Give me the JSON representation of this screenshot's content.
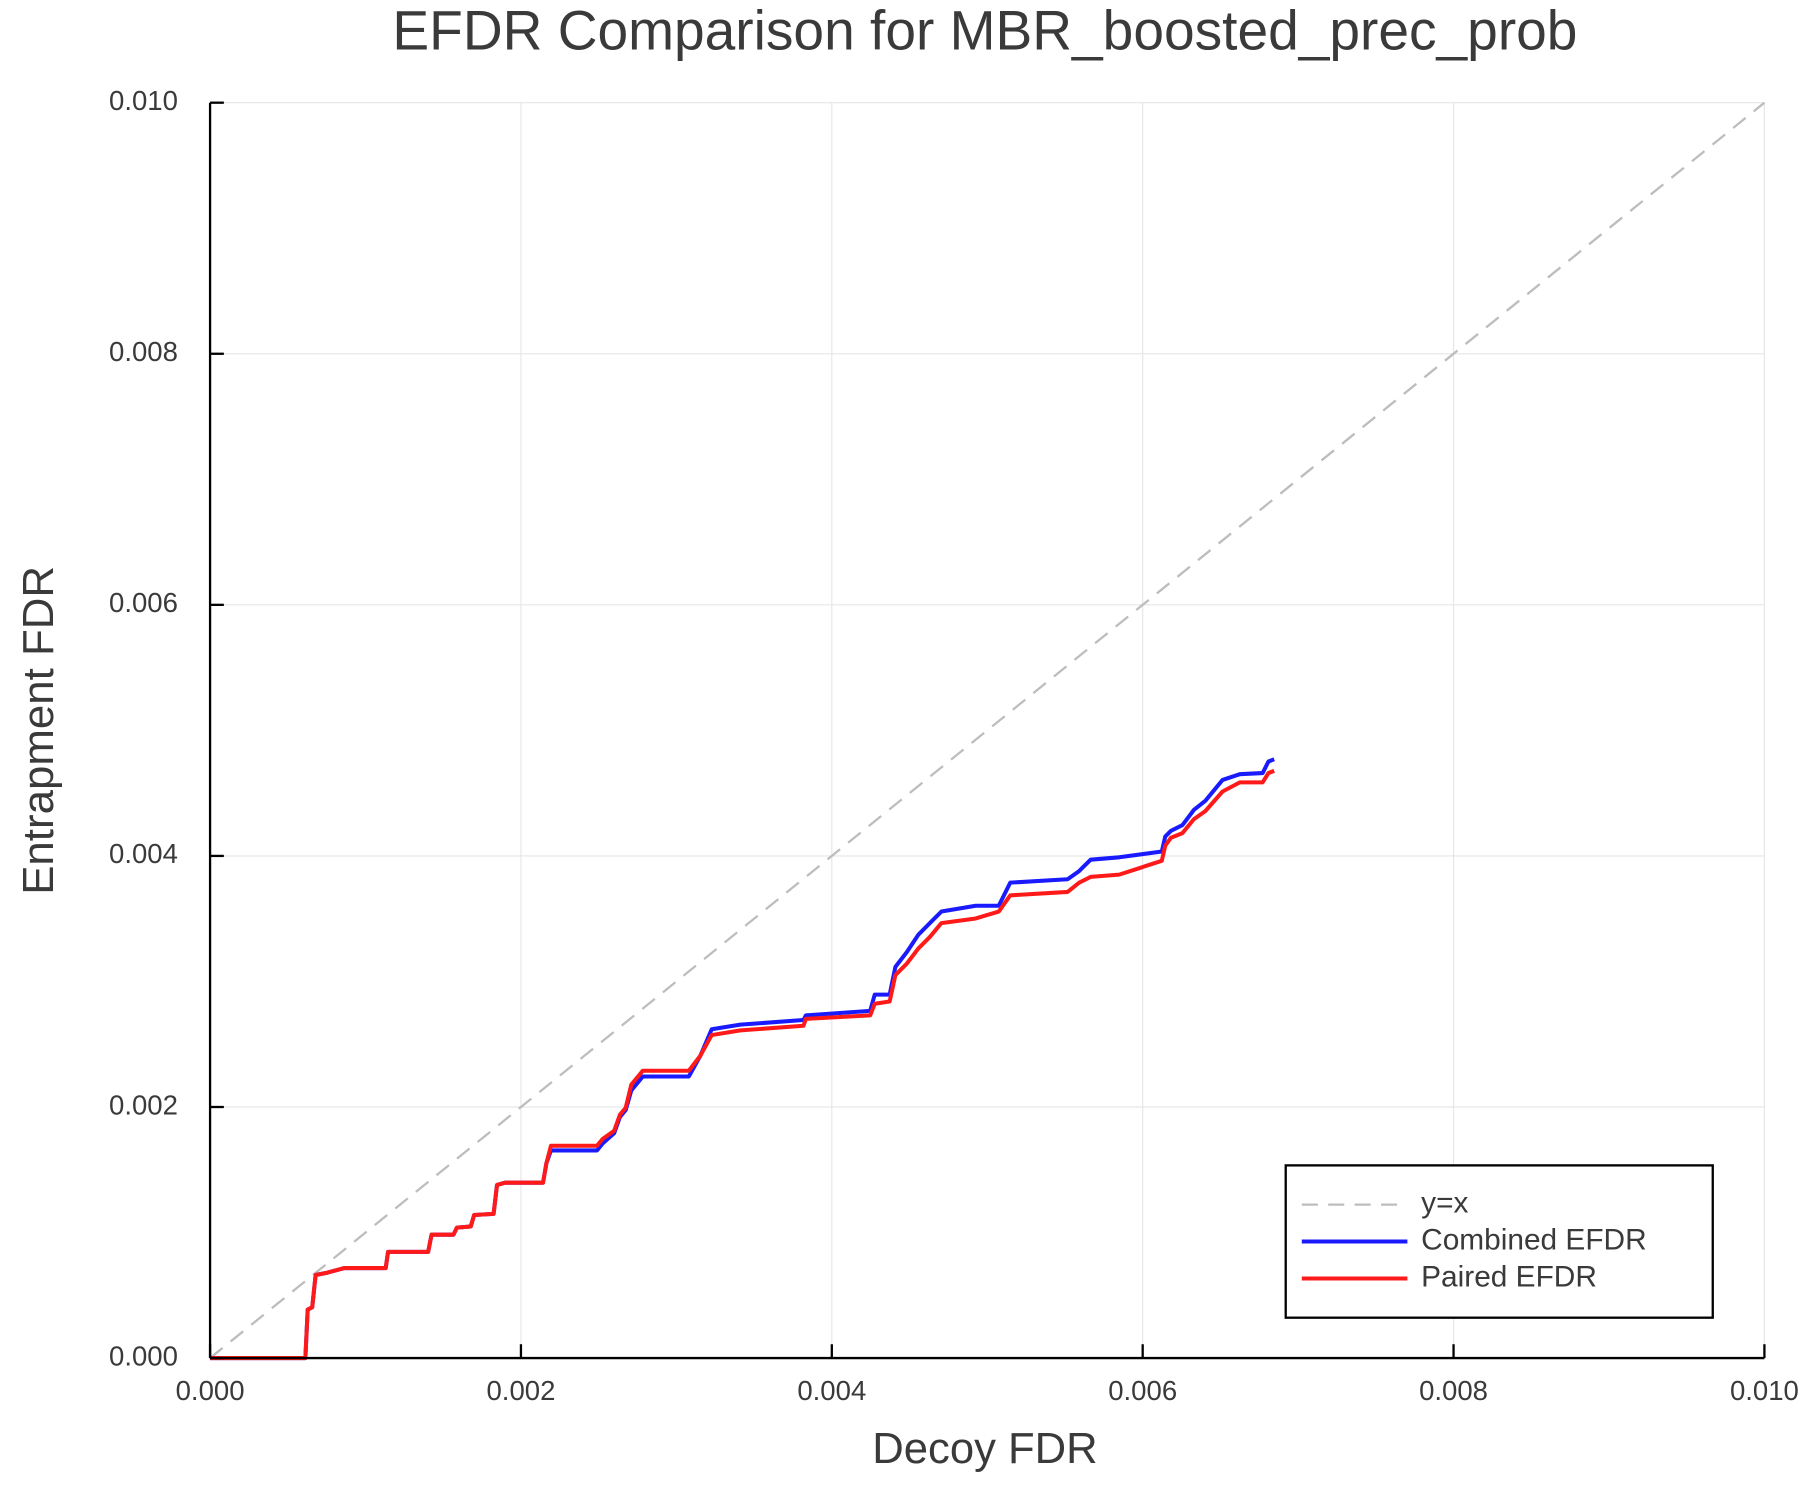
{
  "chart_data": {
    "type": "line",
    "title": "EFDR Comparison for MBR_boosted_prec_prob",
    "x_label": "Decoy FDR",
    "y_label": "Entrapment FDR",
    "xlim": [
      0,
      0.01
    ],
    "ylim": [
      0,
      0.01
    ],
    "xticks": [
      {
        "value": 0,
        "label": "0.000"
      },
      {
        "value": 0.002,
        "label": "0.002"
      },
      {
        "value": 0.004,
        "label": "0.004"
      },
      {
        "value": 0.006,
        "label": "0.006"
      },
      {
        "value": 0.008,
        "label": "0.008"
      },
      {
        "value": 0.01,
        "label": "0.010"
      }
    ],
    "yticks": [
      {
        "value": 0,
        "label": "0.000"
      },
      {
        "value": 0.002,
        "label": "0.002"
      },
      {
        "value": 0.004,
        "label": "0.004"
      },
      {
        "value": 0.006,
        "label": "0.006"
      },
      {
        "value": 0.008,
        "label": "0.008"
      },
      {
        "value": 0.01,
        "label": "0.010"
      }
    ],
    "grid": true,
    "legend": "lower right",
    "series": [
      {
        "name": "y=x",
        "color": "#bdbdbd",
        "dash": true,
        "x": [
          0,
          0.01
        ],
        "values": [
          0,
          0.01
        ]
      },
      {
        "name": "Combined EFDR",
        "color": "#1a1aff",
        "dash": false,
        "x": [
          0,
          0.000613,
          0.000628,
          0.000657,
          0.000679,
          0.000753,
          0.000864,
          0.00113,
          0.001145,
          0.001403,
          0.001425,
          0.001566,
          0.001588,
          0.001677,
          0.001699,
          0.001824,
          0.001846,
          0.001898,
          0.002142,
          0.002164,
          0.002193,
          0.002489,
          0.002526,
          0.0026,
          0.002637,
          0.002674,
          0.00271,
          0.002784,
          0.00308,
          0.003154,
          0.003227,
          0.003412,
          0.003818,
          0.003833,
          0.004247,
          0.004276,
          0.004372,
          0.004409,
          0.004483,
          0.004557,
          0.004631,
          0.004705,
          0.004926,
          0.005074,
          0.005148,
          0.005517,
          0.005591,
          0.005665,
          0.005849,
          0.006123,
          0.006145,
          0.006182,
          0.006256,
          0.006329,
          0.006403,
          0.006514,
          0.006625,
          0.006772,
          0.006809,
          0.006846
        ],
        "values": [
          0,
          0,
          0.000386,
          0.000404,
          0.000662,
          0.00068,
          0.000717,
          0.000717,
          0.000846,
          0.000846,
          0.000983,
          0.000983,
          0.001039,
          0.001048,
          0.00114,
          0.001149,
          0.001379,
          0.001397,
          0.001397,
          0.001553,
          0.001654,
          0.001654,
          0.00171,
          0.001792,
          0.001921,
          0.001976,
          0.002132,
          0.002243,
          0.002243,
          0.002408,
          0.002619,
          0.002656,
          0.002693,
          0.00273,
          0.002766,
          0.002895,
          0.002895,
          0.003116,
          0.003235,
          0.003373,
          0.003465,
          0.003557,
          0.003603,
          0.003603,
          0.003787,
          0.003814,
          0.003879,
          0.00397,
          0.003989,
          0.004035,
          0.004154,
          0.0042,
          0.004246,
          0.004366,
          0.004439,
          0.004605,
          0.004651,
          0.00466,
          0.004752,
          0.00477
        ]
      },
      {
        "name": "Paired EFDR",
        "color": "#ff1a1a",
        "dash": false,
        "x": [
          0,
          0.000613,
          0.000628,
          0.000657,
          0.000679,
          0.000753,
          0.000864,
          0.00113,
          0.001145,
          0.001403,
          0.001425,
          0.001566,
          0.001588,
          0.001677,
          0.001699,
          0.001824,
          0.001846,
          0.001898,
          0.002142,
          0.002164,
          0.002193,
          0.002489,
          0.002526,
          0.0026,
          0.002637,
          0.002674,
          0.00271,
          0.002784,
          0.00308,
          0.003154,
          0.003227,
          0.003412,
          0.003818,
          0.003833,
          0.004247,
          0.004276,
          0.004372,
          0.004409,
          0.004483,
          0.004557,
          0.004631,
          0.004705,
          0.004926,
          0.005074,
          0.005148,
          0.005517,
          0.005591,
          0.005665,
          0.005849,
          0.006123,
          0.006145,
          0.006182,
          0.006256,
          0.006329,
          0.006403,
          0.006514,
          0.006625,
          0.006772,
          0.006809,
          0.006846
        ],
        "values": [
          0,
          0,
          0.000386,
          0.000404,
          0.000662,
          0.00068,
          0.000717,
          0.000717,
          0.000846,
          0.000846,
          0.000983,
          0.000983,
          0.001039,
          0.001048,
          0.00114,
          0.001149,
          0.001379,
          0.001397,
          0.001397,
          0.001553,
          0.001691,
          0.001691,
          0.001746,
          0.001811,
          0.001939,
          0.001994,
          0.002178,
          0.002289,
          0.002289,
          0.002408,
          0.002573,
          0.00261,
          0.002647,
          0.002702,
          0.00273,
          0.002822,
          0.00284,
          0.003051,
          0.003143,
          0.003263,
          0.003355,
          0.003465,
          0.003502,
          0.003557,
          0.003686,
          0.003713,
          0.003787,
          0.003833,
          0.003851,
          0.003961,
          0.004081,
          0.004145,
          0.004182,
          0.004292,
          0.004357,
          0.004513,
          0.004586,
          0.004586,
          0.00466,
          0.004678
        ]
      }
    ]
  }
}
